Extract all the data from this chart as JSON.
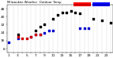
{
  "title": "Milwaukee Weather  Outdoor Temp",
  "temp_data": [
    [
      1,
      null
    ],
    [
      2,
      null
    ],
    [
      3,
      22
    ],
    [
      4,
      null
    ],
    [
      5,
      null
    ],
    [
      6,
      null
    ],
    [
      7,
      26
    ],
    [
      8,
      30
    ],
    [
      9,
      32
    ],
    [
      10,
      null
    ],
    [
      11,
      38
    ],
    [
      12,
      42
    ],
    [
      13,
      44
    ],
    [
      14,
      44
    ],
    [
      15,
      46
    ],
    [
      16,
      44
    ],
    [
      17,
      43
    ],
    [
      18,
      null
    ],
    [
      19,
      null
    ],
    [
      20,
      38
    ],
    [
      21,
      null
    ],
    [
      22,
      36
    ],
    [
      23,
      null
    ],
    [
      24,
      34
    ]
  ],
  "dew_data": [
    [
      1,
      14
    ],
    [
      2,
      null
    ],
    [
      3,
      18
    ],
    [
      4,
      null
    ],
    [
      5,
      null
    ],
    [
      6,
      20
    ],
    [
      7,
      22
    ],
    [
      8,
      22
    ],
    [
      9,
      24
    ],
    [
      10,
      26
    ],
    [
      11,
      26
    ],
    [
      12,
      null
    ],
    [
      13,
      null
    ],
    [
      14,
      null
    ],
    [
      15,
      null
    ],
    [
      16,
      null
    ],
    [
      17,
      28
    ],
    [
      18,
      28
    ],
    [
      19,
      28
    ],
    [
      20,
      null
    ],
    [
      21,
      null
    ],
    [
      22,
      null
    ],
    [
      23,
      null
    ],
    [
      24,
      null
    ]
  ],
  "red_data": [
    [
      3,
      20
    ],
    [
      4,
      18
    ],
    [
      5,
      18
    ],
    [
      6,
      20
    ],
    [
      7,
      22
    ],
    [
      8,
      22
    ]
  ],
  "ylim": [
    4,
    52
  ],
  "xlim": [
    0.5,
    24.5
  ],
  "temp_color": "#000000",
  "dew_color": "#0000cc",
  "red_color": "#cc0000",
  "legend_temp_color": "#ff0000",
  "legend_dew_color": "#0000ff",
  "bg_color": "#ffffff",
  "grid_color": "#888888",
  "tick_label_size": 3.2,
  "ytick_values": [
    8,
    16,
    24,
    32,
    40,
    48
  ],
  "xtick_labels": [
    "1",
    "",
    "3",
    "",
    "5",
    "",
    "7",
    "",
    "9",
    "",
    "11",
    "",
    "13",
    "",
    "15",
    "",
    "17",
    "",
    "19",
    "",
    "21",
    "",
    "23",
    ""
  ]
}
